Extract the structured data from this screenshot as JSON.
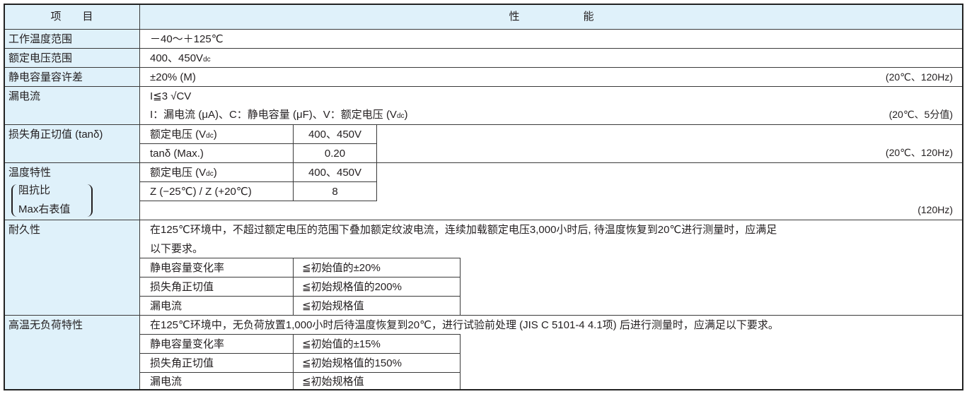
{
  "header": {
    "item": "项　　目",
    "performance": "性　　　　　　能"
  },
  "operating_temp": {
    "label": "工作温度范围",
    "value": "－40～＋125℃"
  },
  "rated_voltage": {
    "label": "额定电压范围",
    "value": "400、450V",
    "unit_sub": "dc"
  },
  "capacitance_tolerance": {
    "label": "静电容量容许差",
    "value": "±20% (M)",
    "condition": "(20℃、120Hz)"
  },
  "leakage_current": {
    "label": "漏电流",
    "formula": "I≦3 √CV",
    "legend": "I：漏电流 (μA)、C：静电容量 (μF)、V：额定电压 (V",
    "legend_sub": "dc",
    "legend_end": ")",
    "condition": "(20℃、5分值)"
  },
  "tan_delta": {
    "label": "损失角正切值 (tanδ)",
    "rows": [
      {
        "name": "额定电压 (V",
        "sub": "dc",
        "end": ")",
        "value": "400、450V"
      },
      {
        "name": "tanδ (Max.)",
        "value": "0.20"
      }
    ],
    "condition": "(20℃、120Hz)"
  },
  "temp_characteristics": {
    "label": "温度特性",
    "label_line2": "阻抗比",
    "label_line3": "Max右表值",
    "rows": [
      {
        "name": "额定电压 (V",
        "sub": "dc",
        "end": ")",
        "value": "400、450V"
      },
      {
        "name": "Z (−25℃) / Z (+20℃)",
        "value": "8"
      }
    ],
    "condition": "(120Hz)"
  },
  "endurance": {
    "label": "耐久性",
    "text_line1": "在125℃环境中，不超过额定电压的范围下叠加额定纹波电流，连续加载额定电压3,000小时后, 待温度恢复到20℃进行测量时，应满足",
    "text_line2": "以下要求。",
    "rows": [
      {
        "name": "静电容量变化率",
        "value": "≦初始值的±20%"
      },
      {
        "name": "损失角正切值",
        "value": "≦初始规格值的200%"
      },
      {
        "name": "漏电流",
        "value": "≦初始规格值"
      }
    ]
  },
  "high_temp_no_load": {
    "label": "高温无负荷特性",
    "text": "在125℃环境中，无负荷放置1,000小时后待温度恢复到20℃，进行试验前处理 (JIS C 5101-4 4.1项) 后进行测量时，应满足以下要求。",
    "rows": [
      {
        "name": "静电容量变化率",
        "value": "≦初始值的±15%"
      },
      {
        "name": "损失角正切值",
        "value": "≦初始规格值的150%"
      },
      {
        "name": "漏电流",
        "value": "≦初始规格值"
      }
    ]
  },
  "colors": {
    "label_bg": "#dff1fa",
    "border": "#222222"
  }
}
